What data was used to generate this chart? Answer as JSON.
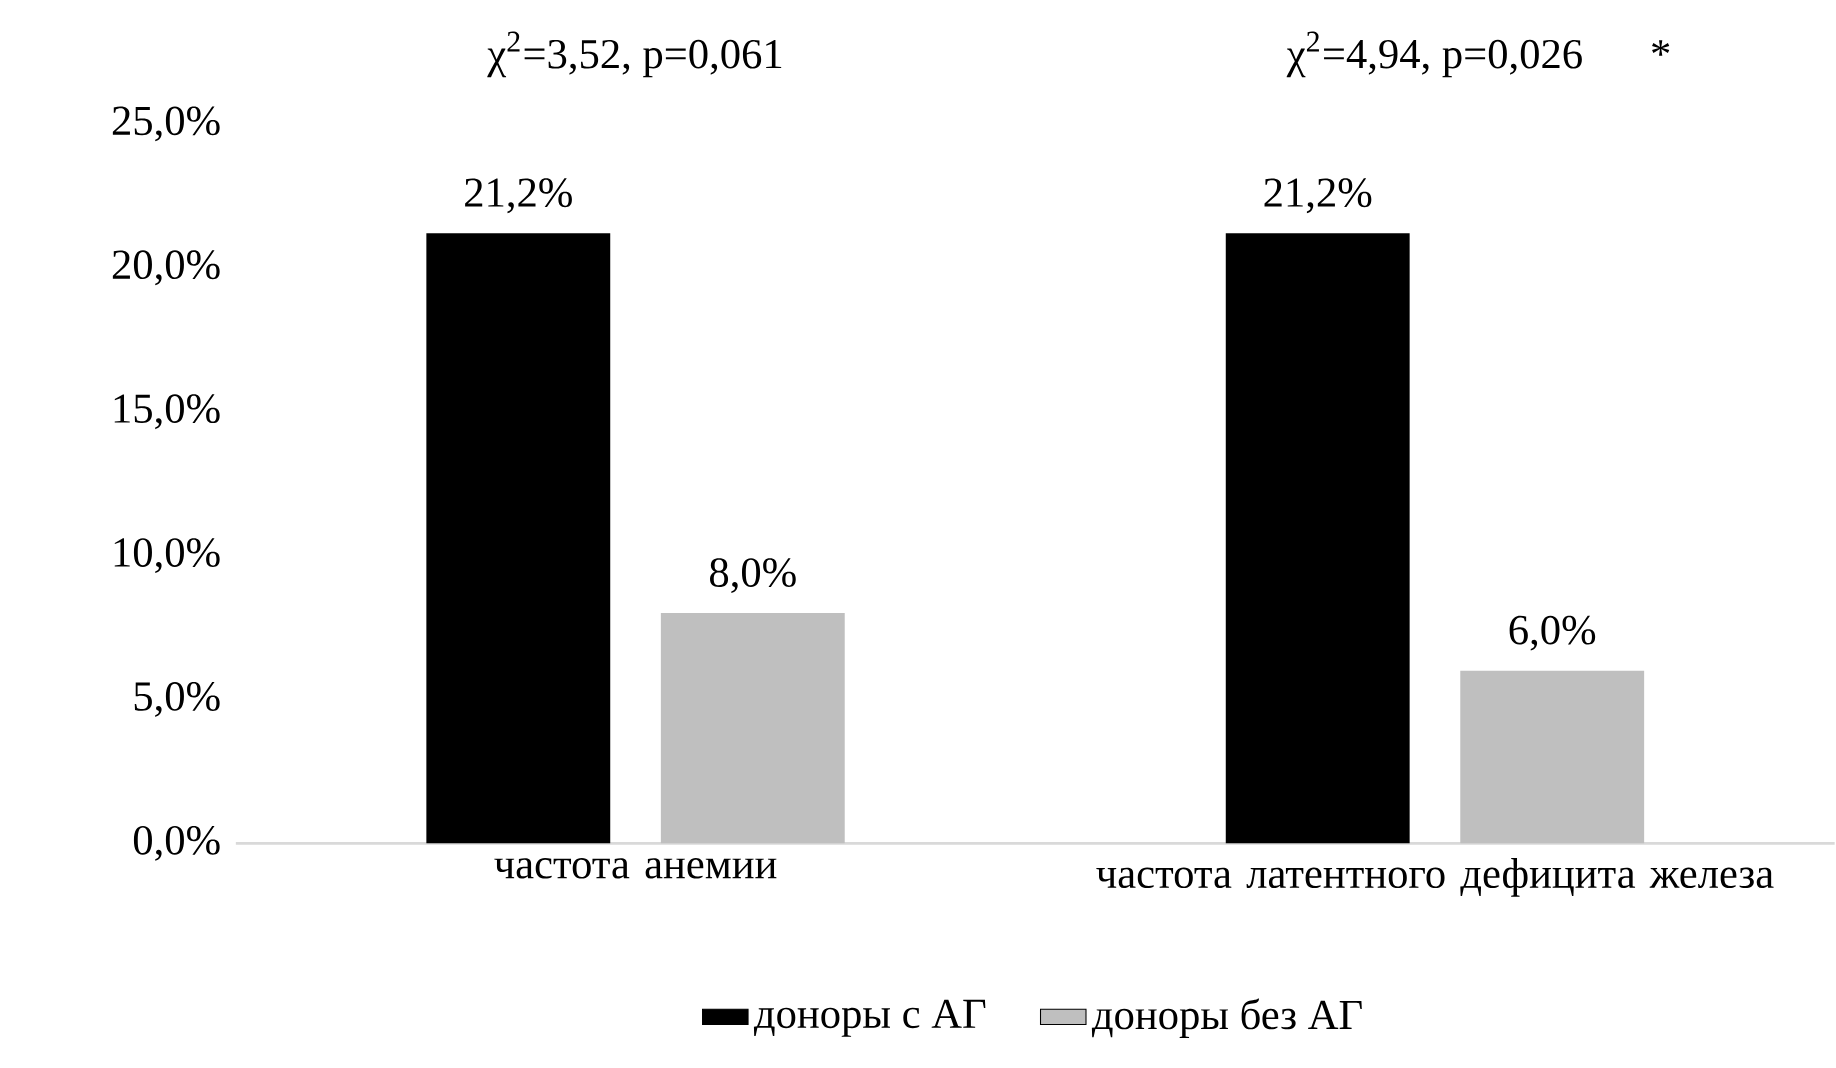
{
  "chart_data": {
    "type": "bar",
    "categories": [
      "частота анемии",
      "частота латентного  дефицита железа"
    ],
    "series": [
      {
        "name": "доноры с АГ",
        "color": "#000000",
        "values": [
          21.2,
          21.2
        ],
        "value_labels": [
          "21,2%",
          "21,2%"
        ]
      },
      {
        "name": "доноры без АГ",
        "color": "#bfbfbf",
        "values": [
          8.0,
          6.0
        ],
        "value_labels": [
          "8,0%",
          "6,0%"
        ]
      }
    ],
    "ylim": [
      0,
      25
    ],
    "yticks": [
      {
        "value": 0,
        "label": "0,0%"
      },
      {
        "value": 5,
        "label": "5,0%"
      },
      {
        "value": 10,
        "label": "10,0%"
      },
      {
        "value": 15,
        "label": "15,0%"
      },
      {
        "value": 20,
        "label": "20,0%"
      },
      {
        "value": 25,
        "label": "25,0%"
      }
    ],
    "annotations": [
      "χ$^{2}$=3,52, p=0,061",
      "χ$^{2}$=4,94, p=0,026",
      "*"
    ],
    "legend": "bottom",
    "grid": false
  }
}
